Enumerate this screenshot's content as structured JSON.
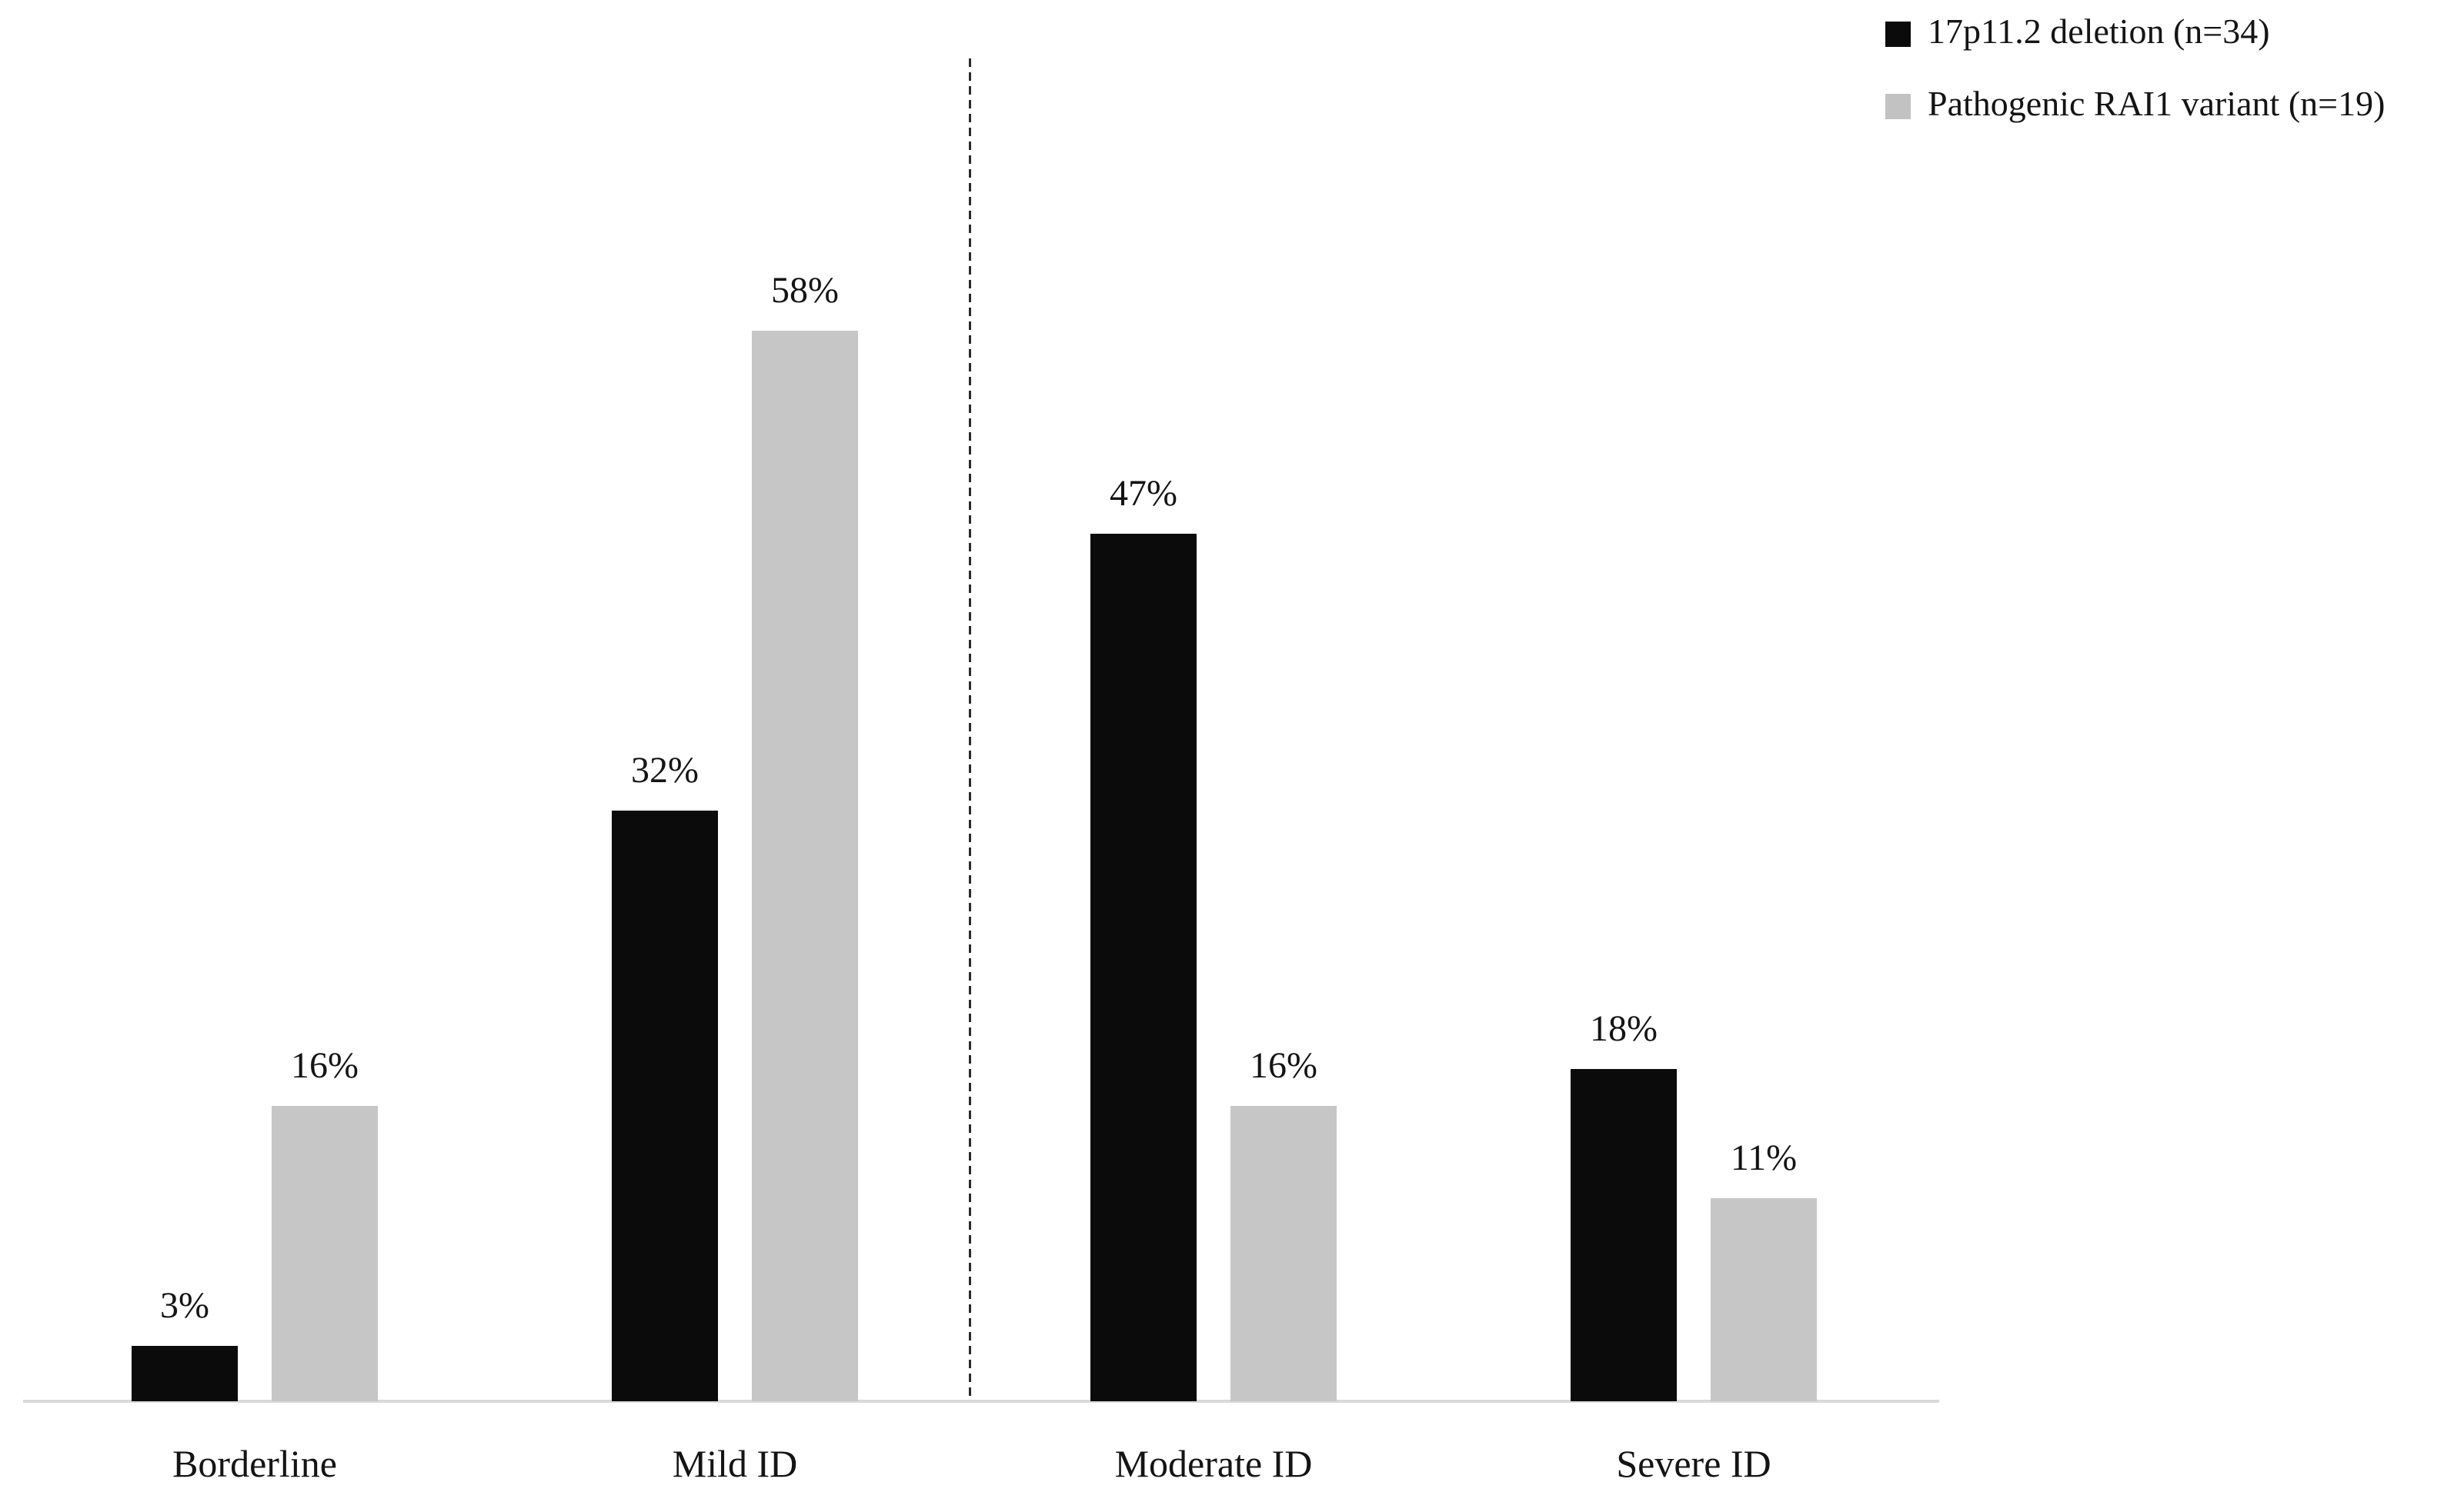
{
  "legend": [
    {
      "label": "17p11.2 deletion (n=34)",
      "color": "#0b0b0b"
    },
    {
      "label": "Pathogenic RAI1 variant (n=19)",
      "color": "#c2c2c2"
    }
  ],
  "chart_data": {
    "type": "bar",
    "title": "",
    "xlabel": "",
    "ylabel": "",
    "unit": "%",
    "categories": [
      "Borderline",
      "Mild ID",
      "Moderate ID",
      "Severe ID"
    ],
    "series": [
      {
        "name": "17p11.2 deletion (n=34)",
        "color": "#0b0b0b",
        "values": [
          3,
          32,
          47,
          18
        ]
      },
      {
        "name": "Pathogenic RAI1 variant (n=19)",
        "color": "#c6c6c6",
        "values": [
          16,
          58,
          16,
          11
        ]
      }
    ],
    "value_labels": [
      [
        "3%",
        "32%",
        "47%",
        "18%"
      ],
      [
        "16%",
        "58%",
        "16%",
        "11%"
      ]
    ],
    "separator": {
      "type": "dashed-vertical-line",
      "between": [
        "Mild ID",
        "Moderate ID"
      ]
    },
    "ylim": [
      0,
      62
    ],
    "grid": false,
    "y_axis_visible": false,
    "x_axis_line_visible": true,
    "legend_position": "top-right"
  }
}
